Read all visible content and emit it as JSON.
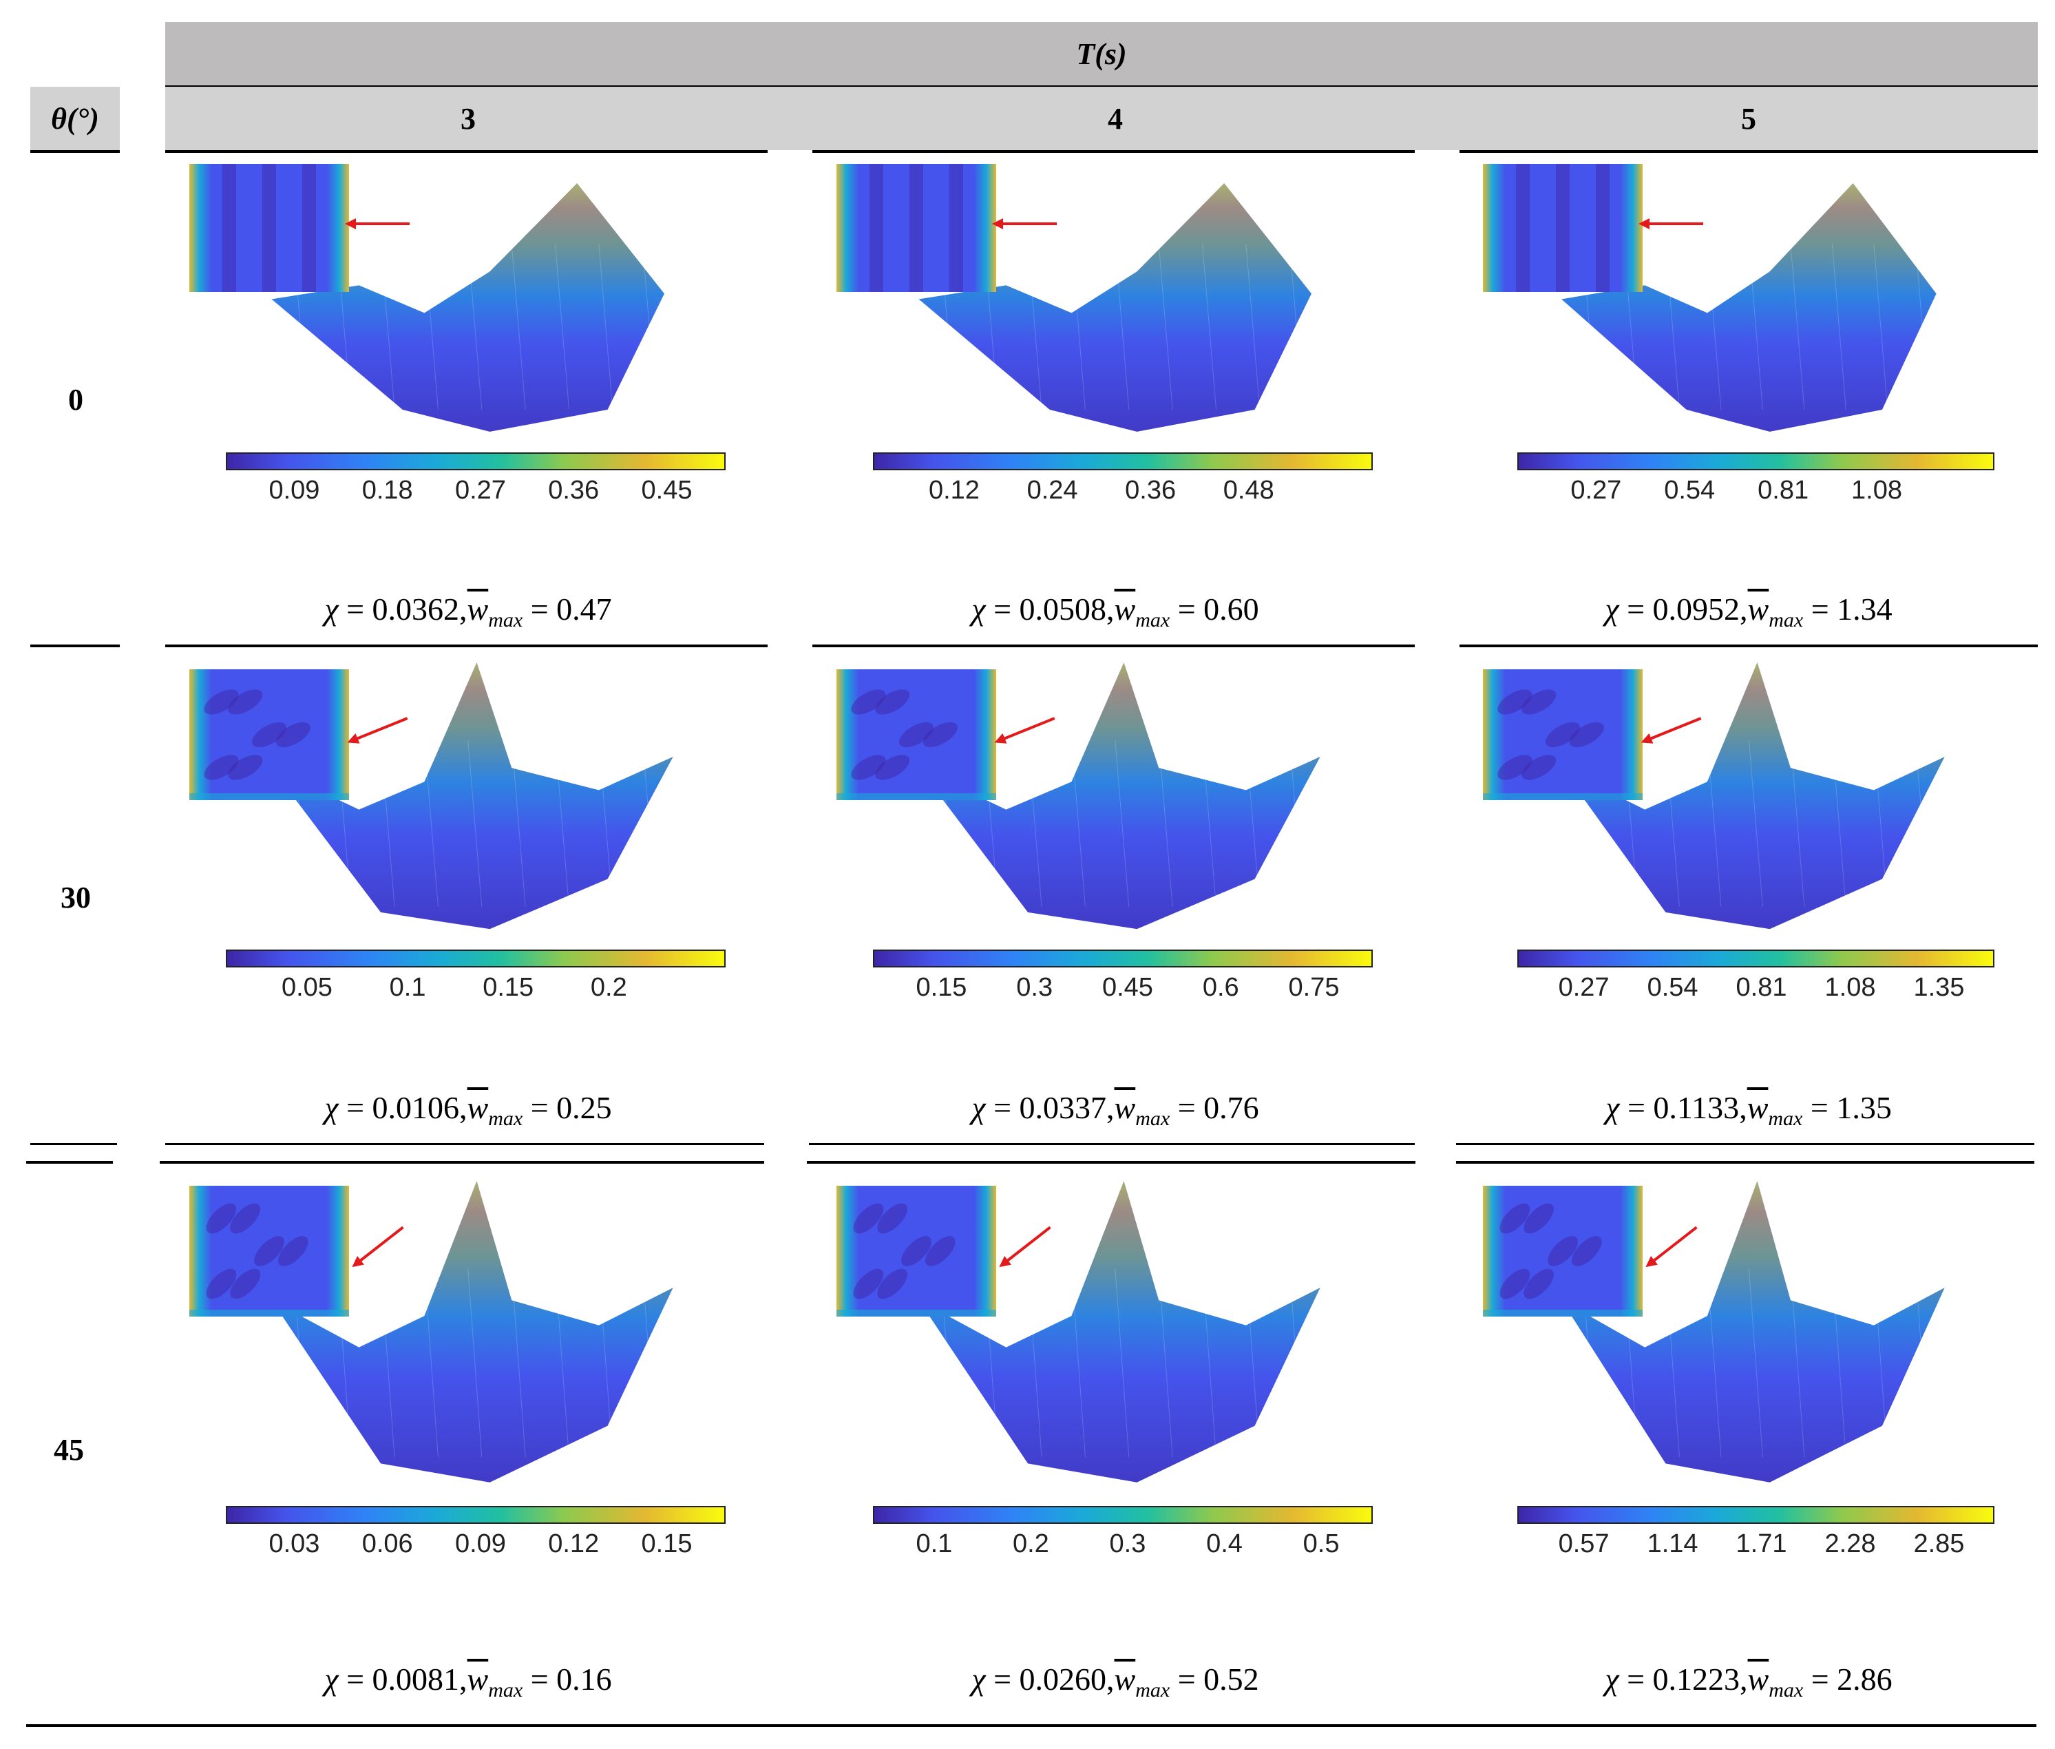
{
  "header": {
    "group_label": "T(s)",
    "theta_label": "θ(°)",
    "periods": [
      "3",
      "4",
      "5"
    ]
  },
  "rows": [
    {
      "theta": "0",
      "cells": [
        {
          "ticks": [
            "0.09",
            "0.18",
            "0.27",
            "0.36",
            "0.45"
          ],
          "chi": "0.0362",
          "wmax": "0.47"
        },
        {
          "ticks": [
            "0.12",
            "0.24",
            "0.36",
            "0.48"
          ],
          "chi": "0.0508",
          "wmax": "0.60"
        },
        {
          "ticks": [
            "0.27",
            "0.54",
            "0.81",
            "1.08"
          ],
          "chi": "0.0952",
          "wmax": "1.34"
        }
      ]
    },
    {
      "theta": "30",
      "cells": [
        {
          "ticks": [
            "0.05",
            "0.1",
            "0.15",
            "0.2"
          ],
          "chi": "0.0106",
          "wmax": "0.25"
        },
        {
          "ticks": [
            "0.15",
            "0.3",
            "0.45",
            "0.6",
            "0.75"
          ],
          "chi": "0.0337",
          "wmax": "0.76"
        },
        {
          "ticks": [
            "0.27",
            "0.54",
            "0.81",
            "1.08",
            "1.35"
          ],
          "chi": "0.1133",
          "wmax": "1.35"
        }
      ]
    },
    {
      "theta": "45",
      "cells": [
        {
          "ticks": [
            "0.03",
            "0.06",
            "0.09",
            "0.12",
            "0.15"
          ],
          "chi": "0.0081",
          "wmax": "0.16"
        },
        {
          "ticks": [
            "0.1",
            "0.2",
            "0.3",
            "0.4",
            "0.5"
          ],
          "chi": "0.0260",
          "wmax": "0.52"
        },
        {
          "ticks": [
            "0.57",
            "1.14",
            "1.71",
            "2.28",
            "2.85"
          ],
          "chi": "0.1223",
          "wmax": "2.86"
        }
      ]
    }
  ],
  "caption_parts": {
    "chi_symbol": "χ",
    "equals": " = ",
    "w_symbol": "w",
    "w_subscript": "max",
    "separator": ","
  },
  "colors": {
    "header_bg": "#bdbbbb",
    "subheader_bg": "#d2d2d2",
    "arrow": "#e3191b",
    "colormap": [
      "#3e26a8",
      "#4554ec",
      "#2f83f5",
      "#1ba9d8",
      "#22c0a0",
      "#8ec94e",
      "#e4b832",
      "#f9fb0e"
    ]
  }
}
